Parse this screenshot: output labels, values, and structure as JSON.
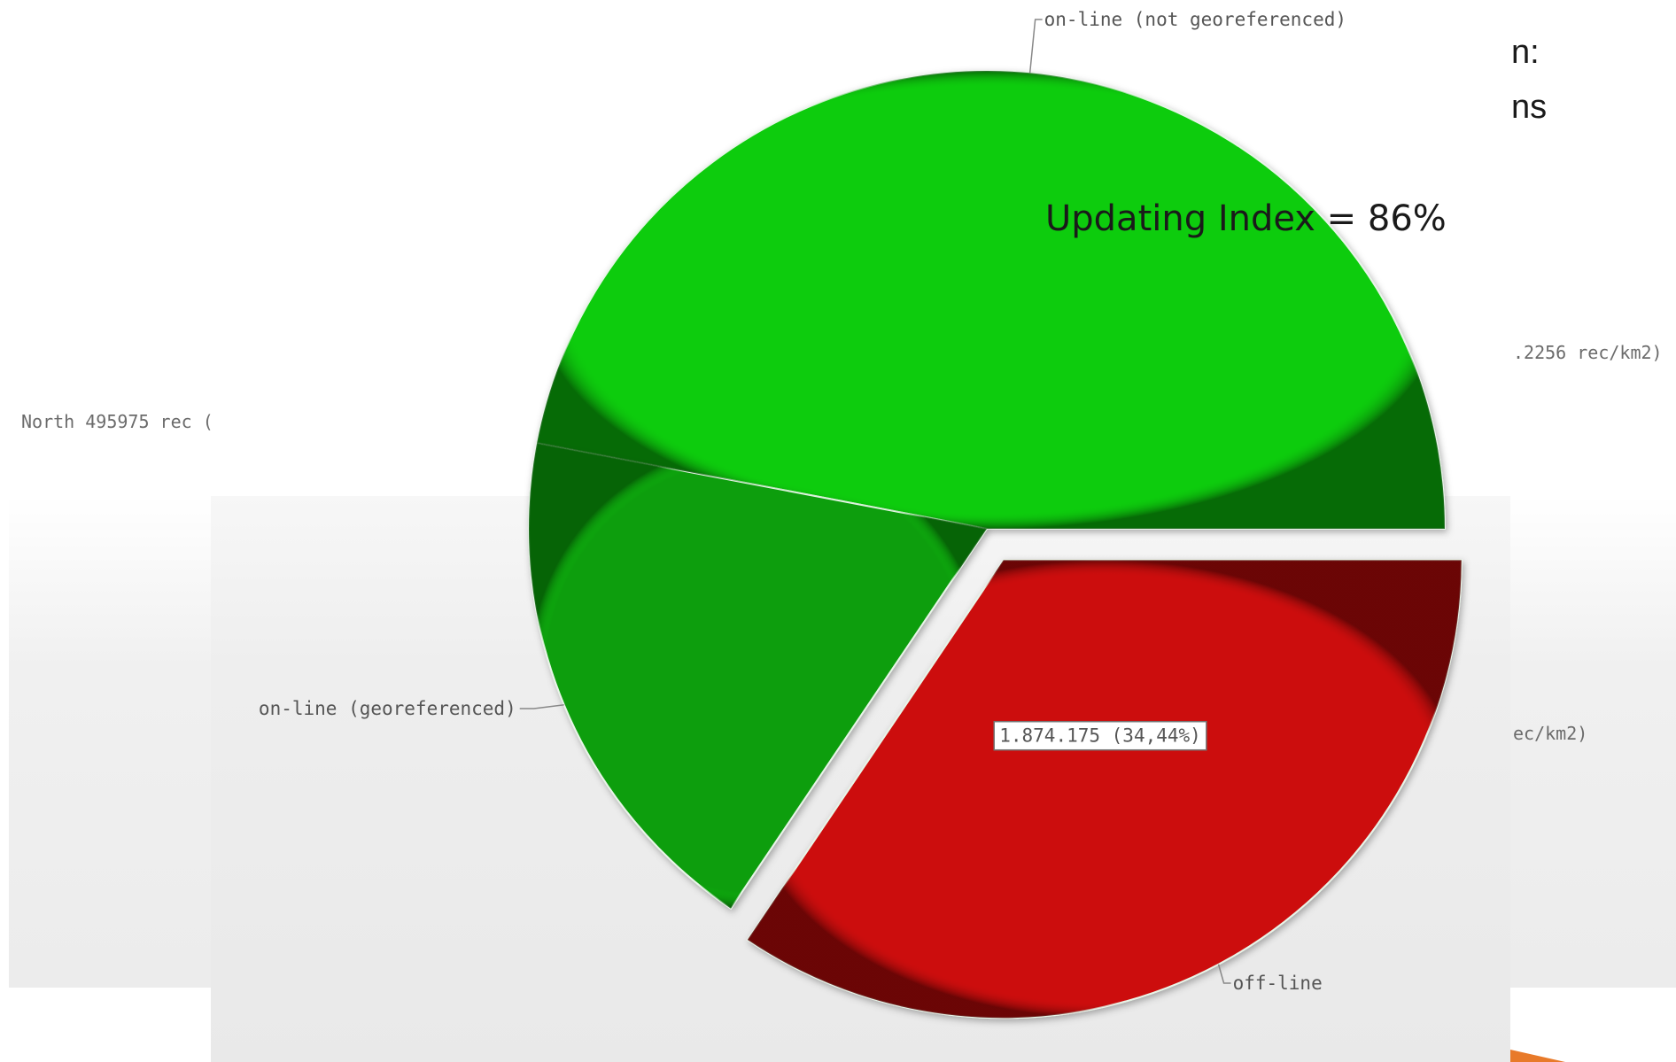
{
  "background_text": {
    "left_partial": "North 495975 rec (",
    "right_partial_1": ".2256 rec/km2)",
    "right_partial_2": "ec/km2)",
    "slide_partial_1": "n:",
    "slide_partial_2": "ns"
  },
  "annotation": "Updating Index = 86%",
  "chart_data": {
    "type": "pie",
    "title": "",
    "slices": [
      {
        "label": "on-line (not georeferenced)",
        "percent": 47.0,
        "color": "#11cc11",
        "exploded": false
      },
      {
        "label": "on-line (georeferenced)",
        "percent": 18.56,
        "color": "#109e10",
        "exploded": false
      },
      {
        "label": "off-line",
        "percent": 34.44,
        "color": "#cc1111",
        "exploded": true,
        "value_label": "1.874.175 (34,44%)"
      }
    ],
    "start_angle_deg": 0,
    "direction": "counterclockwise",
    "legend": "none",
    "shading": "3d-bevel"
  },
  "colors": {
    "accent_arrow": "#e87a2a"
  }
}
